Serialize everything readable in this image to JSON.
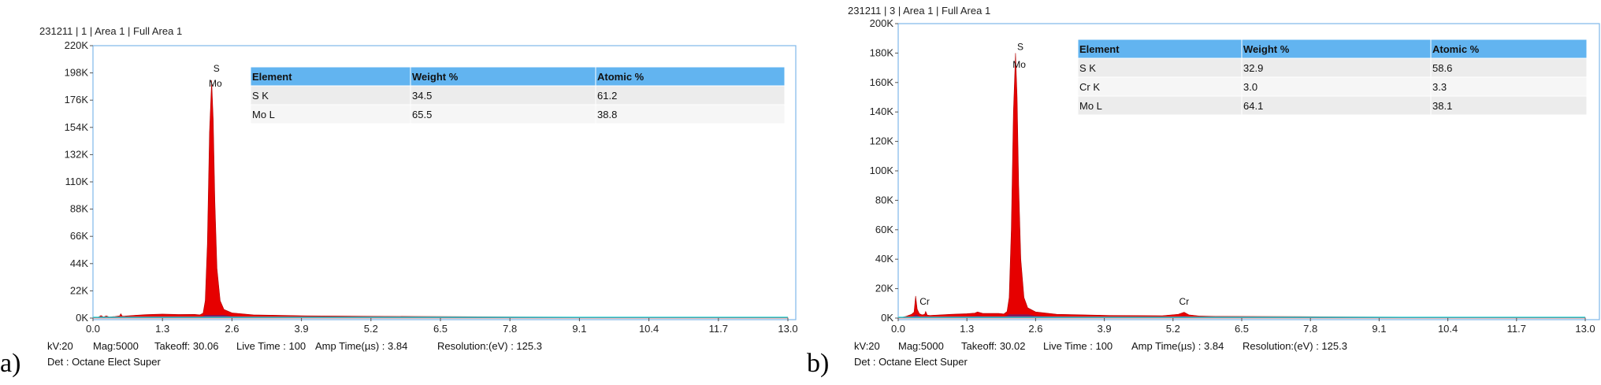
{
  "colors": {
    "spectrum_fill": "#e60000",
    "overlay_fill": "#2a2fae",
    "baseline": "#33d6d6",
    "frame": "#7fb8e8",
    "table_header": "#62b4f0",
    "row_odd": "#ececec",
    "row_even": "#f6f6f6"
  },
  "chart_data": [
    {
      "type": "line",
      "panel_label": "a)",
      "title": "231211 | 1 | Area 1 | Full Area 1",
      "y_ticks": [
        "0K",
        "22K",
        "44K",
        "66K",
        "88K",
        "110K",
        "132K",
        "154K",
        "176K",
        "198K",
        "220K"
      ],
      "x_ticks": [
        "0.0",
        "1.3",
        "2.6",
        "3.9",
        "5.2",
        "6.5",
        "7.8",
        "9.1",
        "10.4",
        "11.7",
        "13.0"
      ],
      "xlim": [
        0,
        13
      ],
      "ylim": [
        0,
        220000
      ],
      "grid": false,
      "series": [
        {
          "x": [
            0.0,
            0.1,
            0.15,
            0.2,
            0.25,
            0.3,
            0.4,
            0.5,
            0.52,
            0.55,
            0.6,
            0.8,
            1.0,
            1.3,
            1.6,
            1.9,
            2.0,
            2.06,
            2.1,
            2.14,
            2.18,
            2.22,
            2.25,
            2.28,
            2.32,
            2.38,
            2.45,
            2.6,
            3.0,
            4.0,
            6.0,
            8.0,
            10.0,
            13.0
          ],
          "y": [
            0,
            800,
            2000,
            900,
            1800,
            900,
            1200,
            1800,
            3500,
            1500,
            1600,
            2300,
            2800,
            3200,
            2900,
            3000,
            2600,
            4000,
            14000,
            60000,
            150000,
            192000,
            160000,
            95000,
            40000,
            14000,
            7000,
            4200,
            2600,
            1800,
            1300,
            900,
            600,
            300
          ]
        }
      ],
      "peak_labels": [
        {
          "text": "S",
          "x": 2.31,
          "y": 199000
        },
        {
          "text": "Mo",
          "x": 2.29,
          "y": 187000
        }
      ],
      "table": {
        "headers": [
          "Element",
          "Weight %",
          "Atomic %"
        ],
        "rows": [
          [
            "S K",
            "34.5",
            "61.2"
          ],
          [
            "Mo L",
            "65.5",
            "38.8"
          ]
        ]
      },
      "meta": {
        "kv": "kV:20",
        "mag": "Mag:5000",
        "takeoff": "Takeoff: 30.06",
        "live_time": "Live Time : 100",
        "amp_time": "Amp Time(µs) : 3.84",
        "resolution": "Resolution:(eV) : 125.3",
        "detector": "Det : Octane Elect Super"
      }
    },
    {
      "type": "line",
      "panel_label": "b)",
      "title": "231211 | 3 | Area 1 | Full Area 1",
      "y_ticks": [
        "0K",
        "20K",
        "40K",
        "60K",
        "80K",
        "100K",
        "120K",
        "140K",
        "160K",
        "180K",
        "200K"
      ],
      "x_ticks": [
        "0.0",
        "1.3",
        "2.6",
        "3.9",
        "5.2",
        "6.5",
        "7.8",
        "9.1",
        "10.4",
        "11.7",
        "13.0"
      ],
      "xlim": [
        0,
        13
      ],
      "ylim": [
        0,
        200000
      ],
      "grid": false,
      "series": [
        {
          "x": [
            0.0,
            0.15,
            0.25,
            0.3,
            0.33,
            0.36,
            0.4,
            0.45,
            0.5,
            0.52,
            0.55,
            0.6,
            0.8,
            1.0,
            1.3,
            1.45,
            1.5,
            1.6,
            1.9,
            2.0,
            2.06,
            2.1,
            2.14,
            2.18,
            2.22,
            2.25,
            2.28,
            2.32,
            2.38,
            2.45,
            2.6,
            3.0,
            4.0,
            5.0,
            5.3,
            5.41,
            5.5,
            5.7,
            6.0,
            8.0,
            10.0,
            13.0
          ],
          "y": [
            0,
            1200,
            2500,
            4000,
            15000,
            6000,
            3000,
            2200,
            2500,
            4500,
            2000,
            1800,
            2200,
            2600,
            3000,
            3400,
            4200,
            3200,
            3200,
            2800,
            4500,
            14000,
            60000,
            140000,
            180000,
            150000,
            90000,
            40000,
            14000,
            7000,
            4200,
            2600,
            1800,
            1600,
            2600,
            4000,
            2200,
            1400,
            1200,
            900,
            600,
            300
          ]
        }
      ],
      "peak_labels": [
        {
          "text": "S",
          "x": 2.31,
          "y": 182000
        },
        {
          "text": "Mo",
          "x": 2.29,
          "y": 170000
        },
        {
          "text": "Cr",
          "x": 0.5,
          "y": 9000
        },
        {
          "text": "Cr",
          "x": 5.41,
          "y": 9000
        }
      ],
      "table": {
        "headers": [
          "Element",
          "Weight %",
          "Atomic %"
        ],
        "rows": [
          [
            "S K",
            "32.9",
            "58.6"
          ],
          [
            "Cr K",
            "3.0",
            "3.3"
          ],
          [
            "Mo L",
            "64.1",
            "38.1"
          ]
        ]
      },
      "meta": {
        "kv": "kV:20",
        "mag": "Mag:5000",
        "takeoff": "Takeoff: 30.02",
        "live_time": "Live Time : 100",
        "amp_time": "Amp Time(µs) : 3.84",
        "resolution": "Resolution:(eV) : 125.3",
        "detector": "Det : Octane Elect Super"
      }
    }
  ]
}
